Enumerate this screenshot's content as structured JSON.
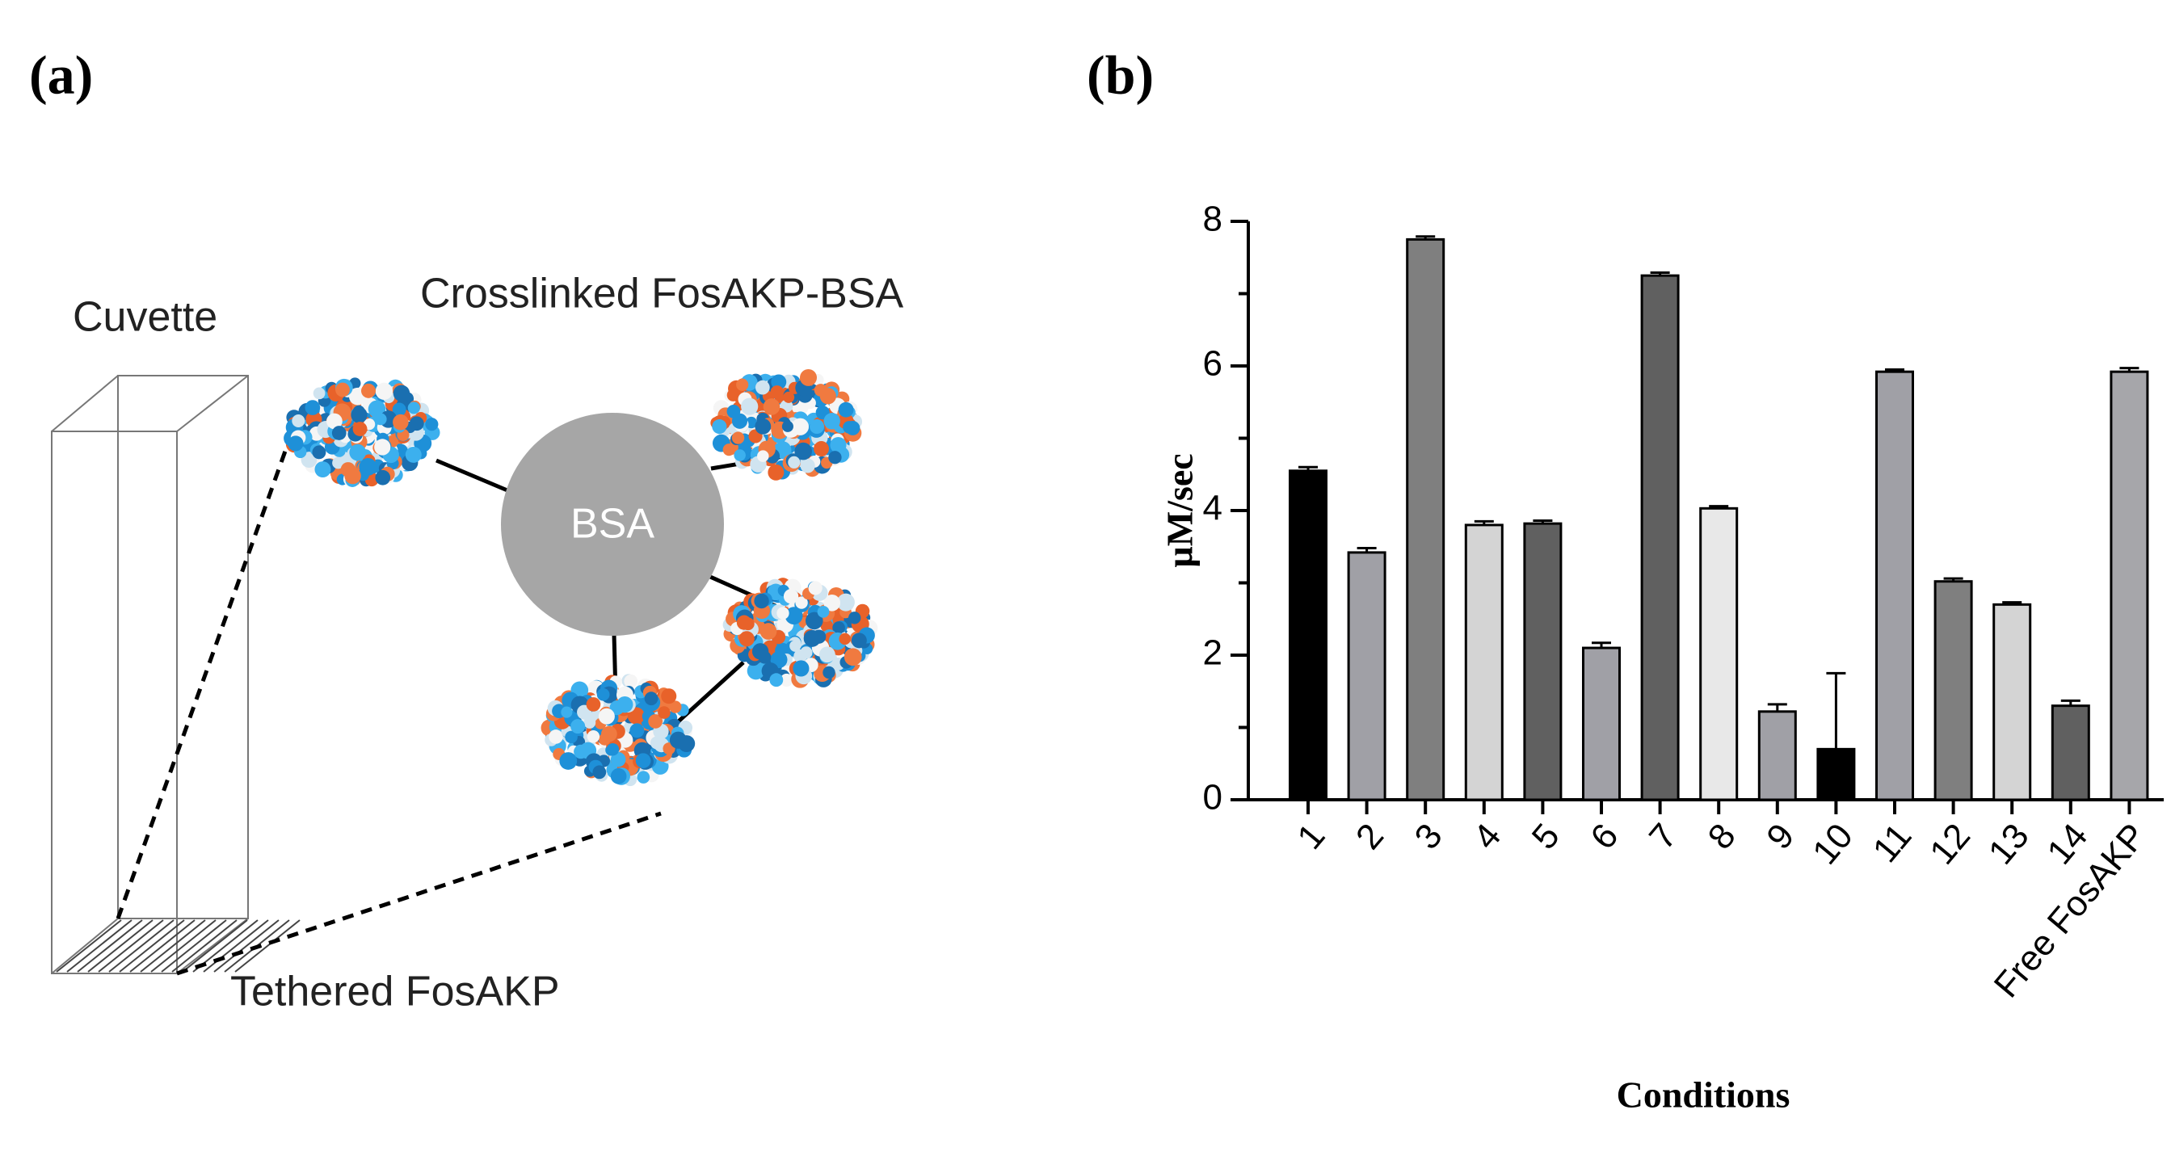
{
  "panel_a": {
    "label": "(a)",
    "cuvette": "Cuvette",
    "crosslinked": "Crosslinked FosAKP-BSA",
    "bsa": "BSA",
    "tethered": "Tethered FosAKP"
  },
  "chart_data": {
    "type": "bar",
    "panel_label": "(b)",
    "y_label": "µM/sec",
    "x_label": "Conditions",
    "categories": [
      "1",
      "2",
      "3",
      "4",
      "5",
      "6",
      "7",
      "8",
      "9",
      "10",
      "11",
      "12",
      "13",
      "14",
      "Free FosAKP"
    ],
    "values": [
      4.55,
      3.42,
      7.75,
      3.8,
      3.82,
      2.1,
      7.25,
      4.03,
      1.22,
      0.7,
      5.92,
      3.02,
      2.7,
      1.3,
      5.92
    ],
    "errors": [
      0.05,
      0.06,
      0.04,
      0.05,
      0.04,
      0.07,
      0.04,
      0.03,
      0.1,
      1.05,
      0.03,
      0.04,
      0.03,
      0.07,
      0.05
    ],
    "colors": [
      "#000000",
      "#a0a0a6",
      "#7f7f7f",
      "#d4d4d4",
      "#606060",
      "#a0a0a6",
      "#606060",
      "#e8e8e8",
      "#a0a0a6",
      "#000000",
      "#a0a0a6",
      "#7f7f7f",
      "#d4d4d4",
      "#606060",
      "#a6a6aa"
    ],
    "ylim": [
      0,
      8
    ],
    "yticks": [
      0,
      2,
      4,
      6,
      8
    ],
    "minor_yticks": [
      1,
      3,
      5,
      7
    ]
  }
}
